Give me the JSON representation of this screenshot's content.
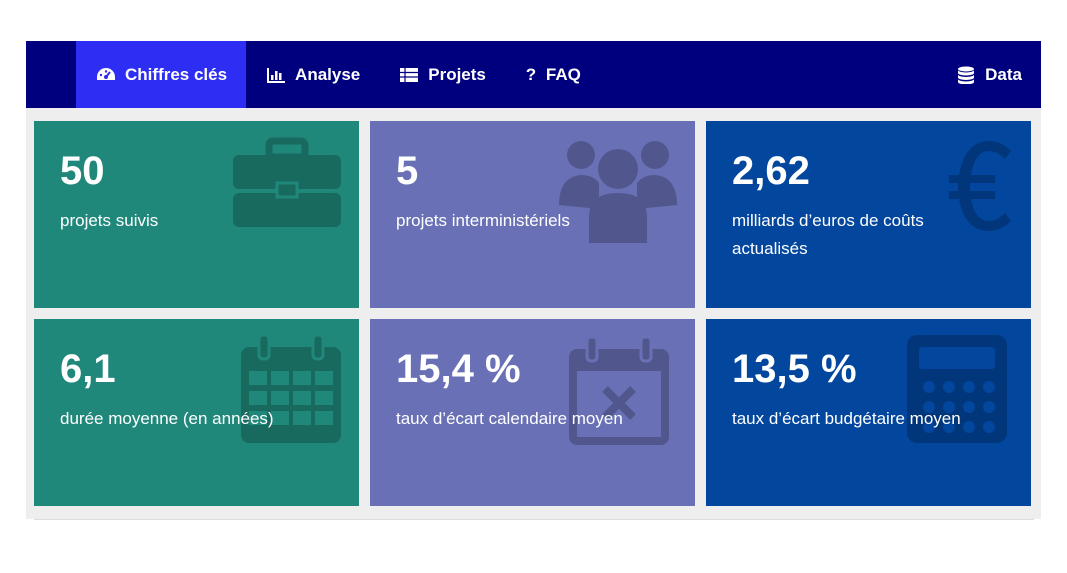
{
  "navbar": {
    "items": [
      {
        "label": "Chiffres clés",
        "icon": "dashboard-icon",
        "active": true
      },
      {
        "label": "Analyse",
        "icon": "bar-chart-icon",
        "active": false
      },
      {
        "label": "Projets",
        "icon": "list-icon",
        "active": false
      },
      {
        "label": "FAQ",
        "icon": "question-icon",
        "active": false
      }
    ],
    "right_item": {
      "label": "Data",
      "icon": "database-icon"
    }
  },
  "tiles": [
    {
      "value": "50",
      "label": "projets suivis",
      "icon": "briefcase-icon",
      "color": "#20887a"
    },
    {
      "value": "5",
      "label": "projets interministériels",
      "icon": "users-icon",
      "color": "#6970b5"
    },
    {
      "value": "2,62",
      "label": "milliards d’euros de coûts actualisés",
      "icon": "euro-icon",
      "color": "#02469e"
    },
    {
      "value": "6,1",
      "label": "durée moyenne (en années)",
      "icon": "calendar-icon",
      "color": "#20887a"
    },
    {
      "value": "15,4 %",
      "label": "taux d’écart calendaire moyen",
      "icon": "calendar-x-icon",
      "color": "#6970b5"
    },
    {
      "value": "13,5 %",
      "label": "taux d’écart budgétaire moyen",
      "icon": "calculator-icon",
      "color": "#02469e"
    }
  ],
  "colors": {
    "navbar": "#00007f",
    "nav_active": "#2d2df3",
    "background": "#eeeeee"
  }
}
